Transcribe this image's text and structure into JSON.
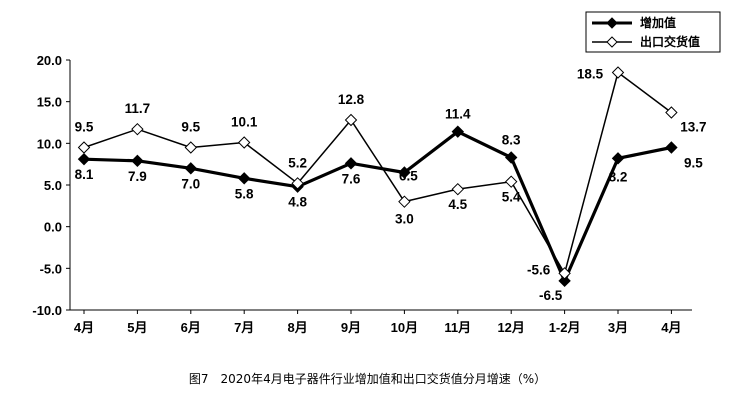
{
  "caption": "图7　2020年4月电子器件行业增加值和出口交货值分月增速（%）",
  "chart_data": {
    "type": "line",
    "title": "",
    "xlabel": "",
    "ylabel": "",
    "ylim": [
      -10,
      20
    ],
    "yticks": [
      -10,
      -5,
      0,
      5,
      10,
      15,
      20
    ],
    "ytick_labels": [
      "-10.0",
      "-5.0",
      "0.0",
      "5.0",
      "10.0",
      "15.0",
      "20.0"
    ],
    "categories": [
      "4月",
      "5月",
      "6月",
      "7月",
      "8月",
      "9月",
      "10月",
      "11月",
      "12月",
      "1-2月",
      "3月",
      "4月"
    ],
    "legend_position": "top-right",
    "grid": false,
    "series": [
      {
        "name": "增加值",
        "values": [
          8.1,
          7.9,
          7.0,
          5.8,
          4.8,
          7.6,
          6.5,
          11.4,
          8.3,
          -6.5,
          8.2,
          9.5
        ],
        "labels": [
          "8.1",
          "7.9",
          "7.0",
          "5.8",
          "4.8",
          "7.6",
          "6.5",
          "11.4",
          "8.3",
          "-6.5",
          "8.2",
          "9.5"
        ],
        "color": "#000000",
        "marker": "filled-diamond"
      },
      {
        "name": "出口交货值",
        "values": [
          9.5,
          11.7,
          9.5,
          10.1,
          5.2,
          12.8,
          3.0,
          4.5,
          5.4,
          -5.6,
          18.5,
          13.7
        ],
        "labels": [
          "9.5",
          "11.7",
          "9.5",
          "10.1",
          "5.2",
          "12.8",
          "3.0",
          "4.5",
          "5.4",
          "-5.6",
          "18.5",
          "13.7"
        ],
        "color": "#000000",
        "marker": "hollow-diamond"
      }
    ]
  }
}
